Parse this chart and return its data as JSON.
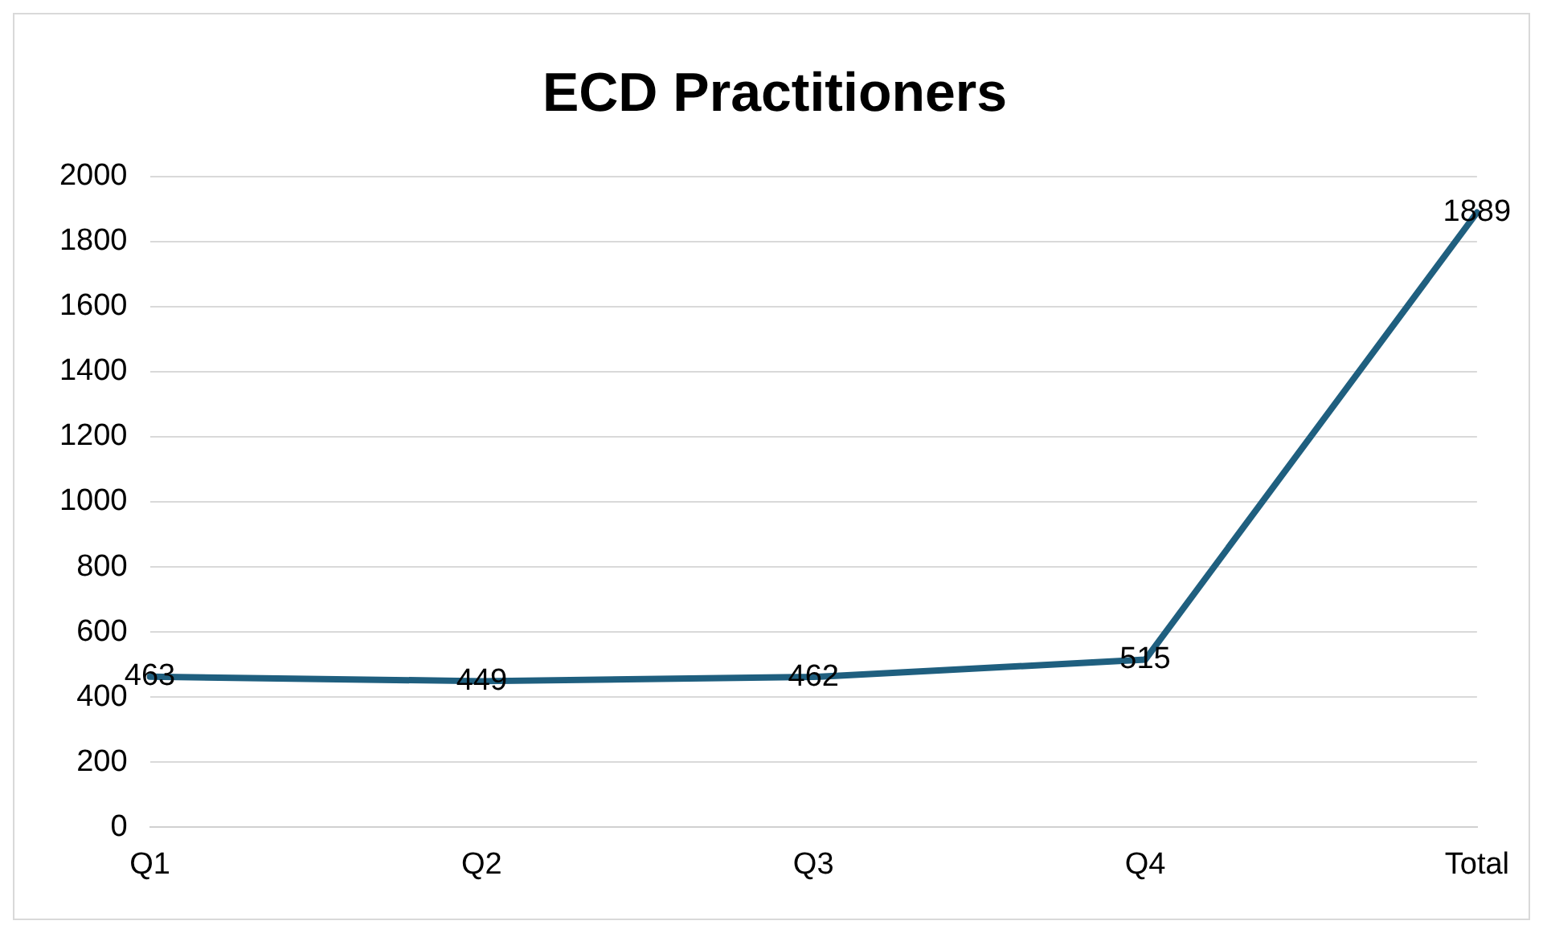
{
  "chart_data": {
    "type": "line",
    "title": "ECD Practitioners",
    "categories": [
      "Q1",
      "Q2",
      "Q3",
      "Q4",
      "Total"
    ],
    "series": [
      {
        "color": "#1f5f7f",
        "values": [
          463,
          449,
          462,
          515,
          1889
        ]
      }
    ],
    "ylim": [
      0,
      2000
    ],
    "yticks": [
      0,
      200,
      400,
      600,
      800,
      1000,
      1200,
      1400,
      1600,
      1800,
      2000
    ],
    "grid": "y",
    "legend": false,
    "marker": "none",
    "line_style": "solid",
    "data_labels": true
  }
}
